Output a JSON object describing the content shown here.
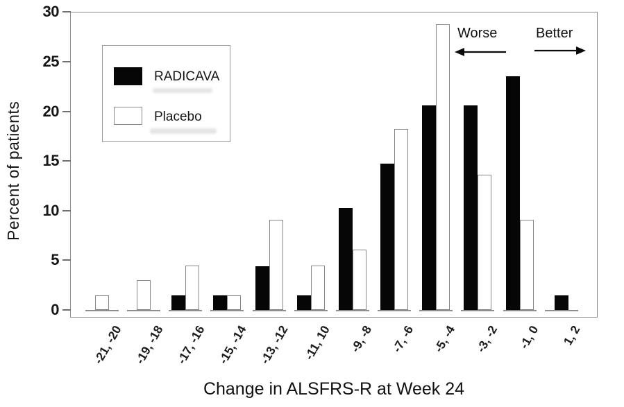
{
  "chart_data": {
    "type": "bar",
    "title": "",
    "xlabel": "Change in ALSFRS-R at Week 24",
    "ylabel": "Percent of patients",
    "ylim": [
      0,
      30
    ],
    "yticks": [
      0,
      5,
      10,
      15,
      20,
      25,
      30
    ],
    "grid": false,
    "legend_position": "upper-left",
    "categories": [
      "-21, -20",
      "-19, -18",
      "-17, -16",
      "-15, -14",
      "-13, -12",
      "-11, 10",
      "-9, -8",
      "-7, -6",
      "-5, -4",
      "-3, -2",
      "-1, 0",
      "1, 2"
    ],
    "series": [
      {
        "name": "RADICAVA",
        "color": "#000000",
        "values": [
          0,
          0,
          1.5,
          1.5,
          4.4,
          1.5,
          10.3,
          14.7,
          20.6,
          20.6,
          23.5,
          1.5
        ]
      },
      {
        "name": "Placebo",
        "color": "#ffffff",
        "values": [
          1.5,
          3.0,
          4.5,
          1.5,
          9.1,
          4.5,
          6.1,
          18.2,
          28.8,
          13.6,
          9.1,
          0
        ]
      }
    ],
    "annotations": [
      {
        "text": "Worse",
        "arrow_direction": "left"
      },
      {
        "text": "Better",
        "arrow_direction": "right"
      }
    ]
  },
  "colors": {
    "bar_black": "#060606",
    "bar_white": "#ffffff",
    "bar_border": "#878787",
    "frame": "#8a8a8a",
    "text": "#1a1a1a",
    "background": "#ffffff"
  }
}
